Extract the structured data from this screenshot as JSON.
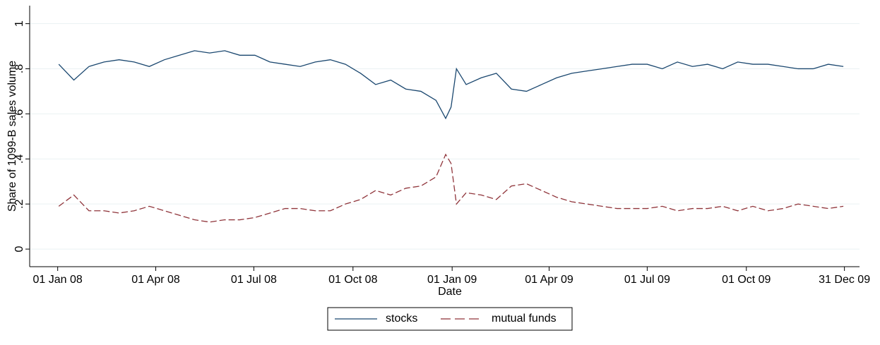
{
  "chart_data": {
    "type": "line",
    "y_label": "Share of 1099-B sales volume",
    "x_label": "Date",
    "x": [
      "2008-01-02",
      "2008-01-16",
      "2008-01-30",
      "2008-02-13",
      "2008-02-27",
      "2008-03-12",
      "2008-03-26",
      "2008-04-09",
      "2008-04-23",
      "2008-05-07",
      "2008-05-21",
      "2008-06-04",
      "2008-06-18",
      "2008-07-02",
      "2008-07-16",
      "2008-07-30",
      "2008-08-13",
      "2008-08-27",
      "2008-09-10",
      "2008-09-24",
      "2008-10-08",
      "2008-10-22",
      "2008-11-05",
      "2008-11-19",
      "2008-12-03",
      "2008-12-17",
      "2008-12-26",
      "2008-12-31",
      "2009-01-05",
      "2009-01-14",
      "2009-01-28",
      "2009-02-11",
      "2009-02-25",
      "2009-03-11",
      "2009-03-25",
      "2009-04-08",
      "2009-04-22",
      "2009-05-06",
      "2009-05-20",
      "2009-06-03",
      "2009-06-17",
      "2009-07-01",
      "2009-07-15",
      "2009-07-29",
      "2009-08-12",
      "2009-08-26",
      "2009-09-09",
      "2009-09-23",
      "2009-10-07",
      "2009-10-21",
      "2009-11-04",
      "2009-11-18",
      "2009-12-02",
      "2009-12-16",
      "2009-12-30"
    ],
    "series": [
      {
        "name": "stocks",
        "color": "#1a476f",
        "line_style": "solid",
        "values": [
          0.82,
          0.75,
          0.81,
          0.83,
          0.84,
          0.83,
          0.81,
          0.84,
          0.86,
          0.88,
          0.87,
          0.88,
          0.86,
          0.86,
          0.83,
          0.82,
          0.81,
          0.83,
          0.84,
          0.82,
          0.78,
          0.73,
          0.75,
          0.71,
          0.7,
          0.66,
          0.58,
          0.63,
          0.8,
          0.73,
          0.76,
          0.78,
          0.71,
          0.7,
          0.73,
          0.76,
          0.78,
          0.79,
          0.8,
          0.81,
          0.82,
          0.82,
          0.8,
          0.83,
          0.81,
          0.82,
          0.8,
          0.83,
          0.82,
          0.82,
          0.81,
          0.8,
          0.8,
          0.82,
          0.81
        ]
      },
      {
        "name": "mutual funds",
        "color": "#90353b",
        "line_style": "dashed",
        "values": [
          0.19,
          0.24,
          0.17,
          0.17,
          0.16,
          0.17,
          0.19,
          0.17,
          0.15,
          0.13,
          0.12,
          0.13,
          0.13,
          0.14,
          0.16,
          0.18,
          0.18,
          0.17,
          0.17,
          0.2,
          0.22,
          0.26,
          0.24,
          0.27,
          0.28,
          0.32,
          0.42,
          0.38,
          0.2,
          0.25,
          0.24,
          0.22,
          0.28,
          0.29,
          0.26,
          0.23,
          0.21,
          0.2,
          0.19,
          0.18,
          0.18,
          0.18,
          0.19,
          0.17,
          0.18,
          0.18,
          0.19,
          0.17,
          0.19,
          0.17,
          0.18,
          0.2,
          0.19,
          0.18,
          0.19
        ]
      }
    ],
    "xlim": [
      "2007-12-06",
      "2010-01-14"
    ],
    "xticks": [
      {
        "value": "2008-01-01",
        "label": "01 Jan 08"
      },
      {
        "value": "2008-04-01",
        "label": "01 Apr 08"
      },
      {
        "value": "2008-07-01",
        "label": "01 Jul 08"
      },
      {
        "value": "2008-10-01",
        "label": "01 Oct 08"
      },
      {
        "value": "2009-01-01",
        "label": "01 Jan 09"
      },
      {
        "value": "2009-04-01",
        "label": "01 Apr 09"
      },
      {
        "value": "2009-07-01",
        "label": "01 Jul 09"
      },
      {
        "value": "2009-10-01",
        "label": "01 Oct 09"
      },
      {
        "value": "2009-12-31",
        "label": "31 Dec 09"
      }
    ],
    "ylim": [
      -0.078,
      1.08
    ],
    "yticks": [
      0,
      {
        "value": 0.2,
        "label": ".2"
      },
      {
        "value": 0.4,
        "label": ".4"
      },
      {
        "value": 0.6,
        "label": ".6"
      },
      {
        "value": 0.8,
        "label": ".8"
      },
      1
    ],
    "grid": true,
    "legend": "bottom"
  }
}
